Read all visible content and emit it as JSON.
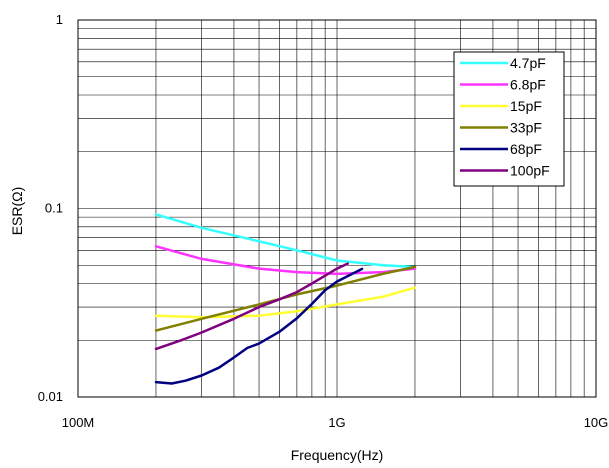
{
  "chart_data": {
    "type": "line",
    "xlabel": "Frequency(Hz)",
    "ylabel": "ESR(Ω)",
    "x_scale": "log",
    "y_scale": "log",
    "xlim": [
      100000000,
      10000000000
    ],
    "ylim": [
      0.01,
      1
    ],
    "x_ticks": [
      {
        "value": 100000000,
        "label": "100M"
      },
      {
        "value": 1000000000,
        "label": "1G"
      },
      {
        "value": 10000000000,
        "label": "10G"
      }
    ],
    "y_ticks": [
      {
        "value": 0.01,
        "label": "0.01"
      },
      {
        "value": 0.1,
        "label": "0.1"
      },
      {
        "value": 1,
        "label": "1"
      }
    ],
    "grid": true,
    "legend_position": "top-right",
    "series": [
      {
        "name": "4.7pF",
        "color": "#33ffff",
        "x": [
          200000000,
          300000000,
          500000000,
          700000000,
          1000000000,
          1500000000,
          2000000000
        ],
        "y": [
          0.093,
          0.079,
          0.067,
          0.06,
          0.053,
          0.05,
          0.049
        ]
      },
      {
        "name": "6.8pF",
        "color": "#ff33ff",
        "x": [
          200000000,
          300000000,
          500000000,
          700000000,
          1000000000,
          1500000000,
          2000000000
        ],
        "y": [
          0.063,
          0.054,
          0.048,
          0.046,
          0.045,
          0.046,
          0.048
        ]
      },
      {
        "name": "15pF",
        "color": "#ffff33",
        "x": [
          200000000,
          300000000,
          500000000,
          700000000,
          1000000000,
          1500000000,
          2000000000
        ],
        "y": [
          0.027,
          0.0265,
          0.027,
          0.0285,
          0.031,
          0.034,
          0.038
        ]
      },
      {
        "name": "33pF",
        "color": "#808000",
        "x": [
          200000000,
          300000000,
          500000000,
          700000000,
          1000000000,
          1500000000,
          2000000000
        ],
        "y": [
          0.0225,
          0.026,
          0.031,
          0.035,
          0.039,
          0.045,
          0.049
        ]
      },
      {
        "name": "68pF",
        "color": "#000080",
        "x": [
          200000000,
          230000000,
          260000000,
          300000000,
          350000000,
          400000000,
          450000000,
          500000000,
          600000000,
          700000000,
          800000000,
          900000000,
          1000000000,
          1100000000,
          1250000000
        ],
        "y": [
          0.012,
          0.0118,
          0.0122,
          0.013,
          0.0143,
          0.0162,
          0.0182,
          0.0192,
          0.0222,
          0.0262,
          0.0312,
          0.0368,
          0.041,
          0.0438,
          0.0478
        ]
      },
      {
        "name": "100pF",
        "color": "#800080",
        "x": [
          200000000,
          250000000,
          300000000,
          400000000,
          500000000,
          600000000,
          700000000,
          800000000,
          900000000,
          1000000000,
          1100000000
        ],
        "y": [
          0.018,
          0.02,
          0.022,
          0.026,
          0.03,
          0.033,
          0.036,
          0.04,
          0.044,
          0.048,
          0.051
        ]
      }
    ]
  }
}
